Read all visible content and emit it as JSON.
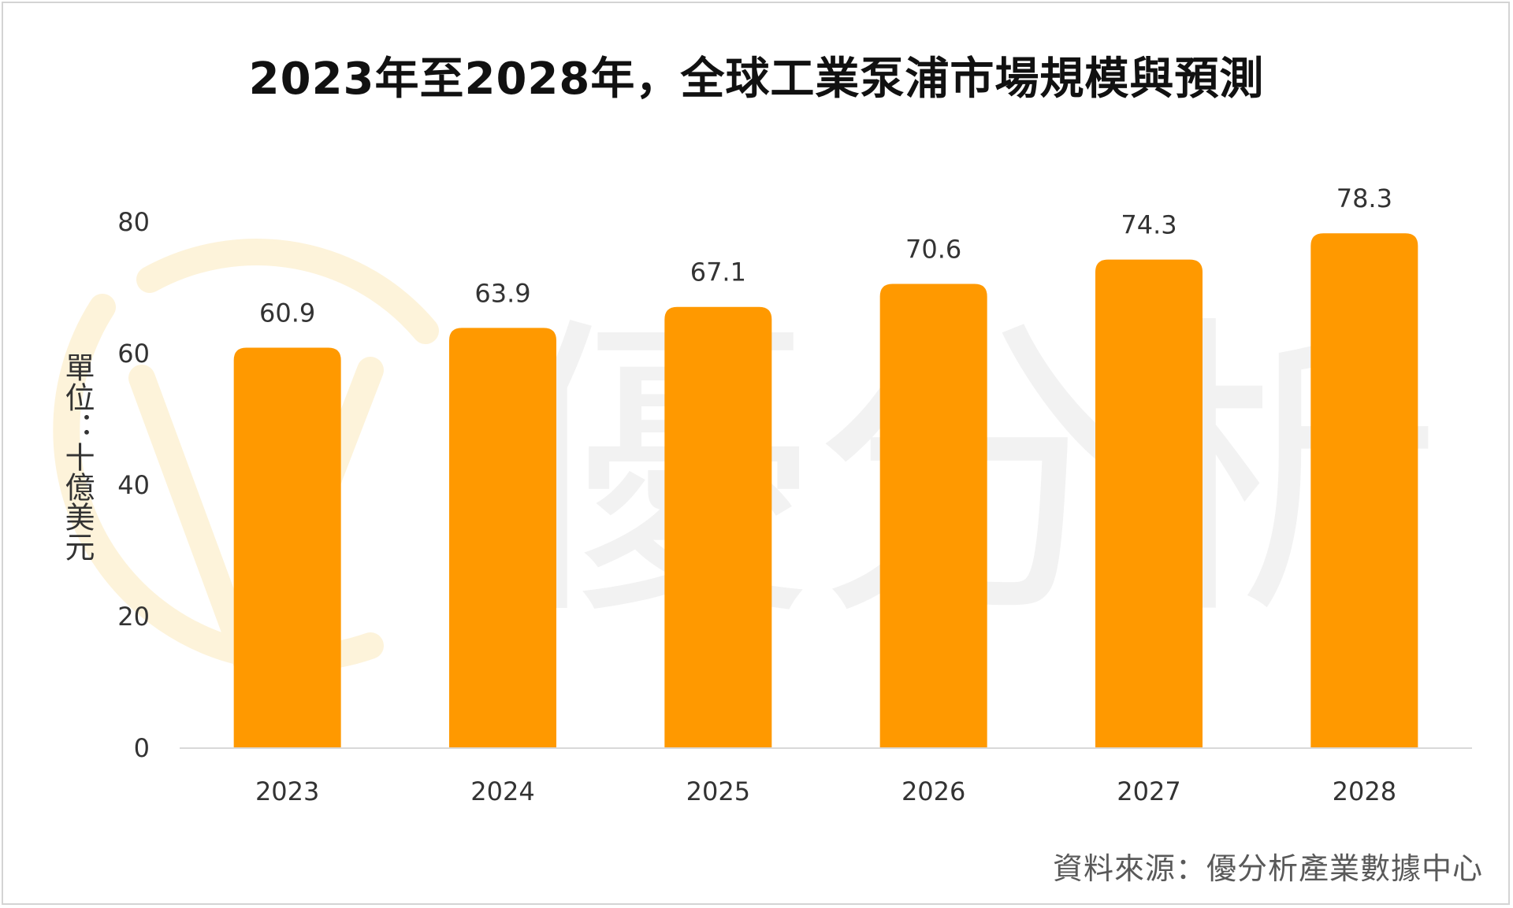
{
  "chart_data": {
    "type": "bar",
    "title": "2023年至2028年，全球工業泵浦市場規模與預測",
    "ylabel": "單位：十億美元",
    "xlabel": "",
    "categories": [
      "2023",
      "2024",
      "2025",
      "2026",
      "2027",
      "2028"
    ],
    "values": [
      60.9,
      63.9,
      67.1,
      70.6,
      74.3,
      78.3
    ],
    "value_labels": [
      "60.9",
      "63.9",
      "67.1",
      "70.6",
      "74.3",
      "78.3"
    ],
    "ylim": [
      0,
      80
    ],
    "yticks": [
      "0",
      "20",
      "40",
      "60",
      "80"
    ],
    "grid": false,
    "legend": "none",
    "bar_color": "#FF9900",
    "source": "資料來源：優分析產業數據中心"
  },
  "watermark": {
    "text": "優分析",
    "color": "#f2f2f2",
    "logo_color": "#fdf3da"
  }
}
